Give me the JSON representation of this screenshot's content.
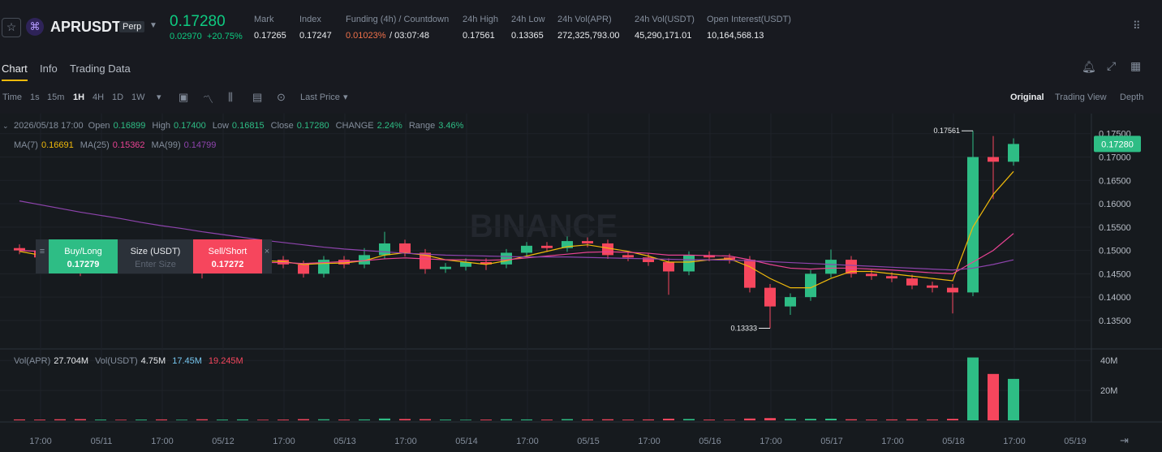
{
  "header": {
    "symbol": "APRUSDT",
    "contract": "Perp",
    "price": "0.17280",
    "change": "0.02970",
    "change_pct": "+20.75%",
    "stats": [
      {
        "label": "Mark",
        "value": "0.17265"
      },
      {
        "label": "Index",
        "value": "0.17247"
      },
      {
        "label": "Funding (4h) / Countdown",
        "value": "0.01023%",
        "extra": "/ 03:07:48"
      },
      {
        "label": "24h High",
        "value": "0.17561"
      },
      {
        "label": "24h Low",
        "value": "0.13365"
      },
      {
        "label": "24h Vol(APR)",
        "value": "272,325,793.00"
      },
      {
        "label": "24h Vol(USDT)",
        "value": "45,290,171.01"
      },
      {
        "label": "Open Interest(USDT)",
        "value": "10,164,568.13"
      }
    ]
  },
  "tabs": [
    "Chart",
    "Info",
    "Trading Data"
  ],
  "toolbar": {
    "time_label": "Time",
    "intervals": [
      "1s",
      "15m",
      "1H",
      "4H",
      "1D",
      "1W"
    ],
    "price_type": "Last Price",
    "views": [
      "Original",
      "Trading View",
      "Depth"
    ]
  },
  "order_panel": {
    "buy_label": "Buy/Long",
    "buy_price": "0.17279",
    "size_label": "Size (USDT)",
    "size_placeholder": "Enter Size",
    "sell_label": "Sell/Short",
    "sell_price": "0.17272"
  },
  "chart_data": {
    "type": "candlestick",
    "watermark": "BINANCE",
    "info": {
      "datetime": "2026/05/18 17:00",
      "fields": [
        {
          "label": "Open",
          "value": "0.16899"
        },
        {
          "label": "High",
          "value": "0.17400"
        },
        {
          "label": "Low",
          "value": "0.16815"
        },
        {
          "label": "Close",
          "value": "0.17280"
        },
        {
          "label": "CHANGE",
          "value": "2.24%"
        },
        {
          "label": "Range",
          "value": "3.46%"
        }
      ]
    },
    "up_color": "#2ebd85",
    "down_color": "#f6465d",
    "open": [
      0.1505,
      0.15,
      0.1485,
      0.1478,
      0.1462,
      0.147,
      0.1465,
      0.1475,
      0.1468,
      0.1472,
      0.146,
      0.1475,
      0.149,
      0.148,
      0.147,
      0.145,
      0.148,
      0.147,
      0.149,
      0.1515,
      0.1495,
      0.146,
      0.1465,
      0.1475,
      0.147,
      0.1495,
      0.151,
      0.1505,
      0.152,
      0.1515,
      0.149,
      0.1485,
      0.1475,
      0.1455,
      0.149,
      0.1485,
      0.148,
      0.142,
      0.138,
      0.14,
      0.145,
      0.148,
      0.145,
      0.1445,
      0.144,
      0.1425,
      0.142,
      0.141,
      0.17,
      0.16899
    ],
    "high": [
      0.1513,
      0.1508,
      0.1493,
      0.1486,
      0.1478,
      0.1478,
      0.1483,
      0.1483,
      0.148,
      0.148,
      0.1483,
      0.1498,
      0.1498,
      0.1488,
      0.1478,
      0.1488,
      0.1488,
      0.1505,
      0.154,
      0.1523,
      0.1503,
      0.1473,
      0.1483,
      0.1483,
      0.1503,
      0.1518,
      0.1518,
      0.153,
      0.1528,
      0.1523,
      0.1498,
      0.1493,
      0.1483,
      0.1498,
      0.1498,
      0.1493,
      0.1488,
      0.1428,
      0.1408,
      0.1458,
      0.1502,
      0.1488,
      0.1458,
      0.1453,
      0.1448,
      0.1433,
      0.1428,
      0.17561,
      0.1745,
      0.174
    ],
    "low": [
      0.1492,
      0.1477,
      0.147,
      0.1445,
      0.1454,
      0.1457,
      0.1457,
      0.146,
      0.146,
      0.144,
      0.1452,
      0.1467,
      0.1472,
      0.1462,
      0.1442,
      0.1442,
      0.1462,
      0.1462,
      0.1482,
      0.1487,
      0.145,
      0.1452,
      0.1457,
      0.1458,
      0.1462,
      0.1487,
      0.1497,
      0.1497,
      0.1507,
      0.1482,
      0.1477,
      0.1467,
      0.1405,
      0.1447,
      0.1477,
      0.1472,
      0.141,
      0.13333,
      0.1362,
      0.1392,
      0.1442,
      0.1442,
      0.1437,
      0.1432,
      0.1417,
      0.141,
      0.1365,
      0.1402,
      0.161,
      0.16815
    ],
    "close": [
      0.15,
      0.1485,
      0.1478,
      0.1462,
      0.147,
      0.1465,
      0.1475,
      0.1468,
      0.1472,
      0.146,
      0.1475,
      0.149,
      0.148,
      0.147,
      0.145,
      0.148,
      0.147,
      0.149,
      0.1515,
      0.1495,
      0.146,
      0.1465,
      0.1475,
      0.147,
      0.1495,
      0.151,
      0.1505,
      0.152,
      0.1515,
      0.149,
      0.1485,
      0.1475,
      0.1455,
      0.149,
      0.1485,
      0.148,
      0.142,
      0.138,
      0.14,
      0.145,
      0.148,
      0.145,
      0.1445,
      0.144,
      0.1425,
      0.142,
      0.141,
      0.17,
      0.16899,
      0.1728
    ],
    "ma": [
      {
        "name": "MA(7)",
        "legend_value": "0.16691",
        "color": "#f0b90b",
        "values": [
          0.1498,
          0.149,
          0.1482,
          0.1475,
          0.1472,
          0.147,
          0.147,
          0.1469,
          0.147,
          0.1468,
          0.147,
          0.1474,
          0.1478,
          0.1476,
          0.147,
          0.1472,
          0.1473,
          0.1478,
          0.149,
          0.1495,
          0.149,
          0.148,
          0.1475,
          0.147,
          0.1478,
          0.1488,
          0.1498,
          0.1508,
          0.1512,
          0.1505,
          0.1498,
          0.1488,
          0.1475,
          0.1475,
          0.148,
          0.1482,
          0.1465,
          0.144,
          0.142,
          0.142,
          0.144,
          0.1455,
          0.1455,
          0.145,
          0.1445,
          0.144,
          0.1435,
          0.155,
          0.162,
          0.16691
        ]
      },
      {
        "name": "MA(25)",
        "legend_value": "0.15362",
        "color": "#e84393",
        "values": [
          0.15,
          0.1498,
          0.1495,
          0.149,
          0.1486,
          0.1482,
          0.1478,
          0.1475,
          0.1472,
          0.147,
          0.147,
          0.1472,
          0.1474,
          0.1474,
          0.1472,
          0.1474,
          0.1476,
          0.1478,
          0.1482,
          0.1484,
          0.1482,
          0.148,
          0.148,
          0.1479,
          0.148,
          0.1484,
          0.1488,
          0.1492,
          0.1496,
          0.1497,
          0.1496,
          0.1494,
          0.149,
          0.149,
          0.1489,
          0.1488,
          0.148,
          0.147,
          0.1462,
          0.146,
          0.1462,
          0.1462,
          0.146,
          0.1458,
          0.1455,
          0.1452,
          0.145,
          0.1475,
          0.15,
          0.15362
        ]
      },
      {
        "name": "MA(99)",
        "legend_value": "0.14799",
        "color": "#8e44ad",
        "values": [
          0.1606,
          0.1598,
          0.159,
          0.1582,
          0.1575,
          0.1568,
          0.156,
          0.1553,
          0.1547,
          0.154,
          0.1534,
          0.1528,
          0.1522,
          0.1517,
          0.1512,
          0.1507,
          0.1503,
          0.15,
          0.1497,
          0.1494,
          0.1492,
          0.149,
          0.1489,
          0.1488,
          0.1487,
          0.1486,
          0.1486,
          0.1486,
          0.1485,
          0.1484,
          0.1483,
          0.1482,
          0.1481,
          0.148,
          0.148,
          0.1479,
          0.1478,
          0.1476,
          0.1474,
          0.1472,
          0.147,
          0.1468,
          0.1466,
          0.1464,
          0.1462,
          0.146,
          0.1458,
          0.1462,
          0.147,
          0.14799
        ]
      }
    ],
    "ylim": [
      0.1289,
      0.1793
    ],
    "yticks": [
      {
        "value": 0.175,
        "label": "0.17500"
      },
      {
        "value": 0.17,
        "label": "0.17000"
      },
      {
        "value": 0.165,
        "label": "0.16500"
      },
      {
        "value": 0.16,
        "label": "0.16000"
      },
      {
        "value": 0.155,
        "label": "0.15500"
      },
      {
        "value": 0.15,
        "label": "0.15000"
      },
      {
        "value": 0.145,
        "label": "0.14500"
      },
      {
        "value": 0.14,
        "label": "0.14000"
      },
      {
        "value": 0.135,
        "label": "0.13500"
      }
    ],
    "price_tag": {
      "value": 0.1728,
      "label": "0.17280"
    },
    "annotations": [
      {
        "index": 47,
        "value": 0.17561,
        "label": "0.17561"
      },
      {
        "index": 37,
        "value": 0.13333,
        "label": "0.13333"
      }
    ],
    "x_labels": [
      "17:00",
      "05/11",
      "17:00",
      "05/12",
      "17:00",
      "05/13",
      "17:00",
      "05/14",
      "17:00",
      "05/15",
      "17:00",
      "05/16",
      "17:00",
      "05/17",
      "17:00",
      "05/18",
      "17:00",
      "05/19"
    ],
    "volume": {
      "legend": [
        {
          "label": "Vol(APR)",
          "value": "27.704M"
        },
        {
          "label": "Vol(USDT)",
          "value": "4.75M"
        },
        {
          "label": "",
          "value": "17.45M"
        },
        {
          "label": "",
          "value": "19.245M"
        }
      ],
      "values": [
        600000,
        500000,
        700000,
        800000,
        500000,
        400000,
        500000,
        600000,
        400000,
        700000,
        500000,
        600000,
        400000,
        500000,
        800000,
        700000,
        500000,
        600000,
        1200000,
        900000,
        800000,
        500000,
        400000,
        500000,
        700000,
        600000,
        500000,
        800000,
        600000,
        700000,
        500000,
        600000,
        1100000,
        900000,
        500000,
        400000,
        1200000,
        1500000,
        900000,
        1000000,
        1100000,
        700000,
        500000,
        600000,
        700000,
        600000,
        1000000,
        42000000,
        31000000,
        27704000
      ],
      "ylim": [
        0,
        45000000
      ],
      "yticks": [
        {
          "value": 20000000,
          "label": "20M"
        },
        {
          "value": 40000000,
          "label": "40M"
        }
      ]
    }
  }
}
